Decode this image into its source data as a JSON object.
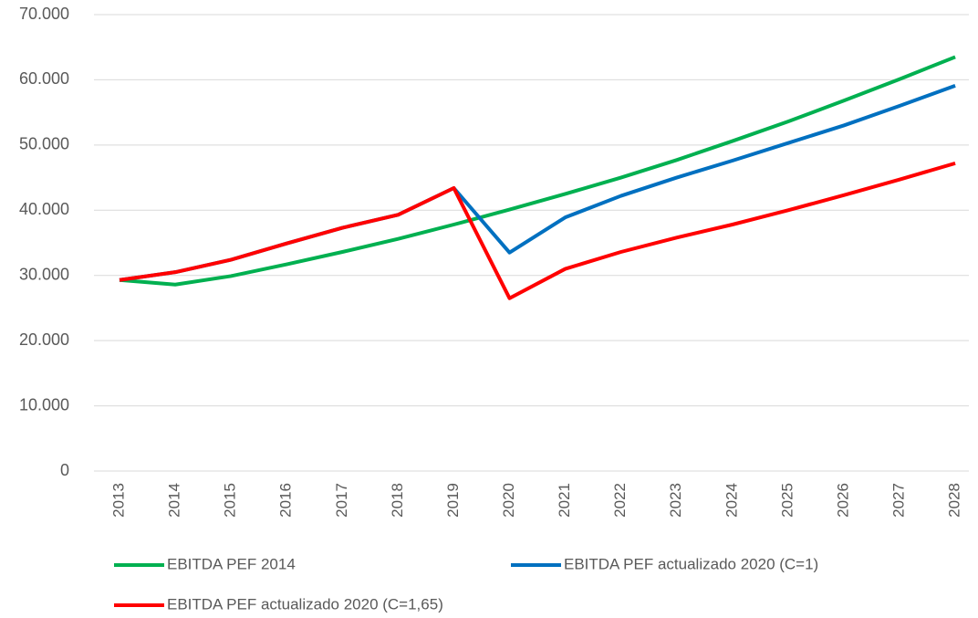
{
  "chart_data": {
    "type": "line",
    "categories": [
      "2013",
      "2014",
      "2015",
      "2016",
      "2017",
      "2018",
      "2019",
      "2020",
      "2021",
      "2022",
      "2023",
      "2024",
      "2025",
      "2026",
      "2027",
      "2028"
    ],
    "series": [
      {
        "name": "EBITDA PEF 2014",
        "color": "#00b050",
        "values": [
          29300,
          28600,
          29900,
          31700,
          33600,
          35600,
          37800,
          40100,
          42500,
          45000,
          47700,
          50600,
          53600,
          56800,
          60100,
          63500
        ]
      },
      {
        "name": "EBITDA PEF actualizado 2020 (C=1)",
        "color": "#0070c0",
        "values": [
          29300,
          30500,
          32400,
          34900,
          37300,
          39300,
          43400,
          33500,
          38900,
          42200,
          45000,
          47600,
          50300,
          53000,
          56000,
          59100
        ]
      },
      {
        "name": "EBITDA PEF actualizado 2020 (C=1,65)",
        "color": "#ff0000",
        "values": [
          29300,
          30500,
          32400,
          34900,
          37300,
          39300,
          43400,
          26500,
          31000,
          33600,
          35800,
          37800,
          40000,
          42300,
          44700,
          47200
        ]
      }
    ],
    "ylim": [
      0,
      70000
    ],
    "yticks": [
      0,
      {
        "value": 10000,
        "label": "10.000"
      },
      {
        "value": 20000,
        "label": "20.000"
      },
      {
        "value": 30000,
        "label": "30.000"
      },
      {
        "value": 40000,
        "label": "40.000"
      },
      {
        "value": 50000,
        "label": "50.000"
      },
      {
        "value": 60000,
        "label": "60.000"
      },
      {
        "value": 70000,
        "label": "70.000"
      }
    ],
    "grid": true,
    "legend": "bottom"
  }
}
